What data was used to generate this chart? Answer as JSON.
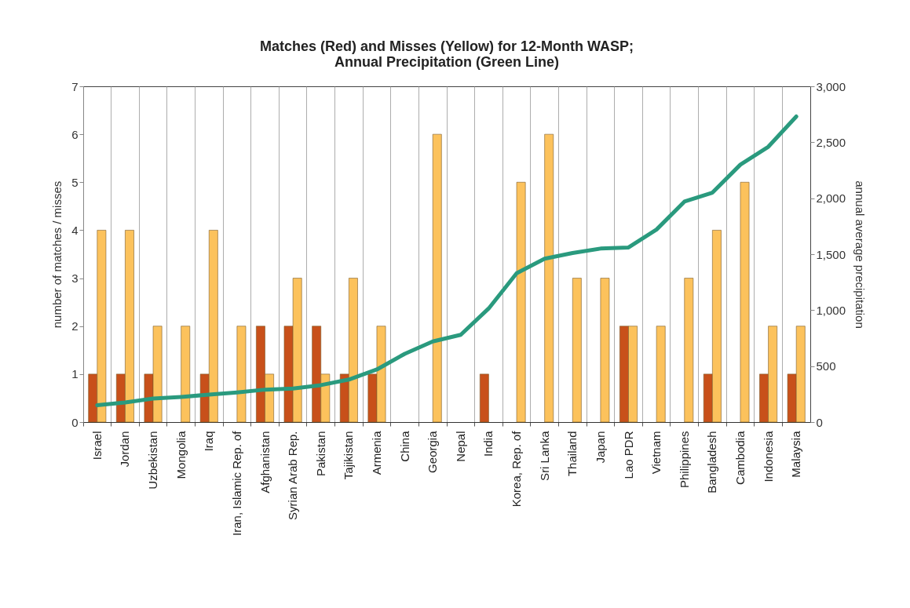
{
  "chart_data": {
    "type": "bar",
    "title": "Matches (Red) and Misses (Yellow) for 12-Month WASP;\nAnnual Precipitation (Green Line)",
    "ylabel": "number of matches / misses",
    "y2label": "annual average precipitation",
    "categories": [
      "Israel",
      "Jordan",
      "Uzbekistan",
      "Mongolia",
      "Iraq",
      "Iran, Islamic Rep. of",
      "Afghanistan",
      "Syrian Arab Rep.",
      "Pakistan",
      "Tajikistan",
      "Armenia",
      "China",
      "Georgia",
      "Nepal",
      "India",
      "Korea, Rep. of",
      "Sri Lanka",
      "Thailand",
      "Japan",
      "Lao PDR",
      "Vietnam",
      "Philippines",
      "Bangladesh",
      "Cambodia",
      "Indonesia",
      "Malaysia"
    ],
    "series": [
      {
        "color": "#c8501a",
        "values": [
          1,
          1,
          1,
          0,
          1,
          0,
          2,
          2,
          2,
          1,
          1,
          0,
          0,
          0,
          1,
          0,
          0,
          0,
          0,
          2,
          0,
          0,
          1,
          0,
          1,
          1
        ]
      },
      {
        "color": "#fcc25c",
        "values": [
          4,
          4,
          2,
          2,
          4,
          2,
          1,
          3,
          1,
          3,
          2,
          0,
          6,
          0,
          0,
          5,
          6,
          3,
          3,
          2,
          2,
          3,
          4,
          5,
          2,
          2
        ]
      },
      {
        "type": "line",
        "axis": "y2",
        "color": "#2a9a7e",
        "values": [
          150,
          175,
          210,
          225,
          245,
          265,
          290,
          300,
          330,
          380,
          470,
          610,
          720,
          780,
          1015,
          1330,
          1460,
          1510,
          1550,
          1560,
          1720,
          1970,
          2050,
          2300,
          2460,
          2730
        ]
      }
    ],
    "ylim": [
      0,
      7
    ],
    "yticks": [
      0,
      1,
      2,
      3,
      4,
      5,
      6,
      7
    ],
    "y2lim": [
      0,
      3000
    ],
    "y2ticks": [
      0,
      500,
      {
        "value": 1000,
        "label": "1,000"
      },
      {
        "value": 1500,
        "label": "1,500"
      },
      {
        "value": 2000,
        "label": "2,000"
      },
      {
        "value": 2500,
        "label": "2,500"
      },
      {
        "value": 3000,
        "label": "3,000"
      }
    ],
    "grid": "x"
  }
}
